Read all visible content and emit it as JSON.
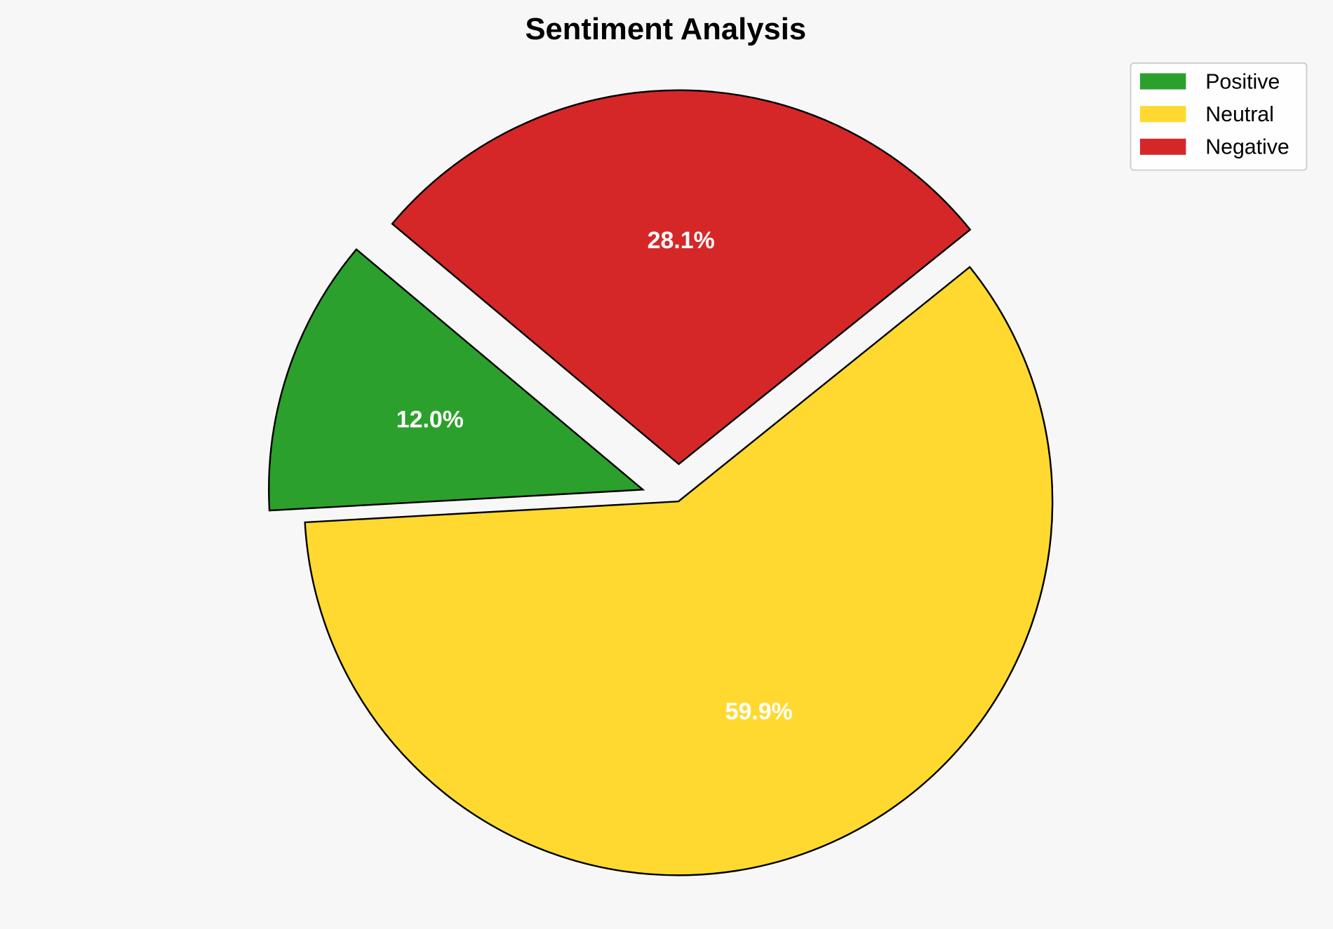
{
  "chart_data": {
    "type": "pie",
    "title": "Sentiment Analysis",
    "categories": [
      "Positive",
      "Neutral",
      "Negative"
    ],
    "values": [
      12.0,
      59.9,
      28.1
    ],
    "value_labels": [
      "12.0%",
      "59.9%",
      "28.1%"
    ],
    "colors": [
      "#2ca02c",
      "#ffd92f",
      "#d62728"
    ],
    "explode": [
      0.1,
      0,
      0.1
    ],
    "start_angle": 140,
    "direction": "counterclockwise",
    "legend": {
      "placement": "top-right",
      "entries": [
        "Positive",
        "Neutral",
        "Negative"
      ]
    },
    "background": "#f7f7f7",
    "edge_color": "#000000"
  }
}
